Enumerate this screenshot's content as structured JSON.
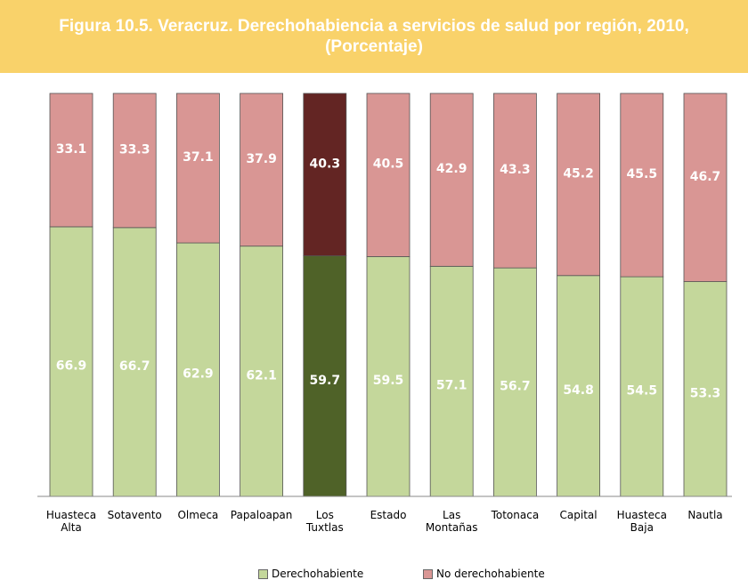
{
  "chart_data": {
    "type": "stacked_bar",
    "title": "Figura 10.5. Veracruz. Derechohabiencia a servicios de salud por región, 2010, (Porcentaje)",
    "categories": [
      "Huasteca\nAlta",
      "Sotavento",
      "Olmeca",
      "Papaloapan",
      "Los\nTuxtlas",
      "Estado",
      "Las\nMontañas",
      "Totonaca",
      "Capital",
      "Huasteca\nBaja",
      "Nautla"
    ],
    "highlight": "Los\nTuxtlas",
    "series": [
      {
        "name": "Derechohabiente",
        "color": "#c4d79b",
        "highlight_color": "#4f6228",
        "values": [
          66.9,
          66.7,
          62.9,
          62.1,
          59.7,
          59.5,
          57.1,
          56.7,
          54.8,
          54.5,
          53.3
        ]
      },
      {
        "name": "No derechohabiente",
        "color": "#d99694",
        "highlight_color": "#632523",
        "values": [
          33.1,
          33.3,
          37.1,
          37.9,
          40.3,
          40.5,
          42.9,
          43.3,
          45.2,
          45.5,
          46.7
        ]
      }
    ],
    "ylim": [
      0,
      100
    ]
  }
}
